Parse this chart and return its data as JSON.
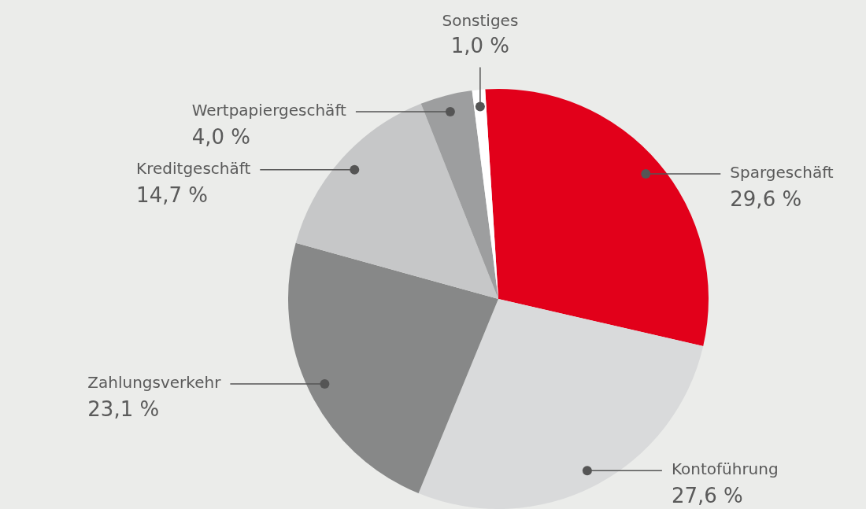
{
  "chart_data": {
    "type": "pie",
    "categories": [
      "Spargeschäft",
      "Kontoführung",
      "Zahlungsverkehr",
      "Kreditgeschäft",
      "Wertpapiergeschäft",
      "Sonstiges"
    ],
    "values": [
      29.6,
      27.6,
      23.1,
      14.7,
      4.0,
      1.0
    ],
    "value_labels": [
      "29,6 %",
      "27,6 %",
      "23,1 %",
      "14,7 %",
      "4,0 %",
      "1,0 %"
    ],
    "colors": [
      "#e2001a",
      "#d9dadb",
      "#878888",
      "#c6c7c8",
      "#9d9e9f",
      "#ffffff"
    ],
    "legend": false
  }
}
